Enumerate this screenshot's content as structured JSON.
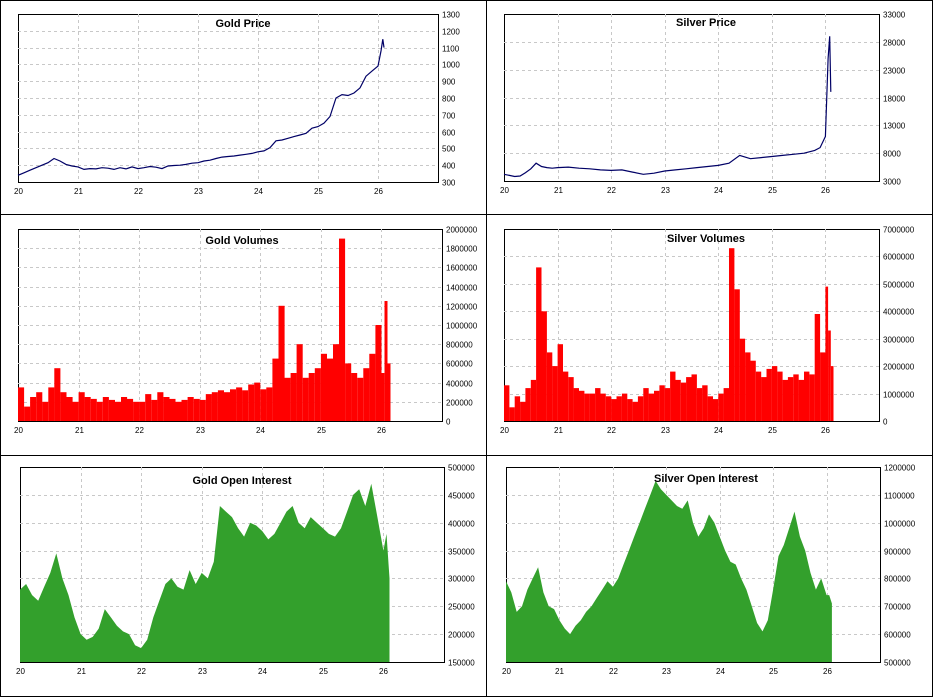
{
  "colors": {
    "price_line": "#000066",
    "volume_fill": "#ff0000",
    "oi_fill": "#33a02c"
  },
  "chart_data": [
    {
      "id": "gold-price",
      "type": "line",
      "title": "Gold Price",
      "x_ticks": [
        "20",
        "21",
        "22",
        "23",
        "24",
        "25",
        "26"
      ],
      "xlim": [
        20,
        27
      ],
      "y_ticks": [
        "300",
        "400",
        "500",
        "600",
        "700",
        "800",
        "900",
        "1000",
        "1100",
        "1200",
        "1300"
      ],
      "ylim": [
        300,
        1300
      ],
      "color": "#000066",
      "x": [
        20.0,
        20.1,
        20.2,
        20.3,
        20.4,
        20.5,
        20.6,
        20.7,
        20.8,
        20.9,
        21.0,
        21.1,
        21.2,
        21.3,
        21.4,
        21.5,
        21.6,
        21.7,
        21.8,
        21.9,
        22.0,
        22.1,
        22.2,
        22.3,
        22.4,
        22.5,
        22.6,
        22.7,
        22.8,
        22.9,
        23.0,
        23.1,
        23.2,
        23.3,
        23.4,
        23.5,
        23.6,
        23.7,
        23.8,
        23.9,
        24.0,
        24.1,
        24.2,
        24.3,
        24.4,
        24.5,
        24.6,
        24.7,
        24.8,
        24.9,
        25.0,
        25.1,
        25.2,
        25.3,
        25.4,
        25.5,
        25.6,
        25.7,
        25.8,
        25.9,
        26.0,
        26.05,
        26.08,
        26.1
      ],
      "y": [
        340,
        355,
        370,
        385,
        400,
        415,
        440,
        425,
        405,
        395,
        390,
        375,
        380,
        378,
        385,
        382,
        375,
        385,
        378,
        390,
        380,
        385,
        392,
        388,
        380,
        395,
        398,
        400,
        405,
        412,
        415,
        425,
        430,
        440,
        448,
        452,
        455,
        460,
        465,
        470,
        480,
        485,
        505,
        545,
        550,
        560,
        570,
        580,
        590,
        620,
        630,
        650,
        690,
        800,
        820,
        815,
        830,
        860,
        930,
        960,
        990,
        1080,
        1150,
        1100
      ]
    },
    {
      "id": "silver-price",
      "type": "line",
      "title": "Silver Price",
      "x_ticks": [
        "20",
        "21",
        "22",
        "23",
        "24",
        "25",
        "26"
      ],
      "xlim": [
        20,
        27
      ],
      "y_ticks": [
        "3000",
        "8000",
        "13000",
        "18000",
        "23000",
        "28000",
        "33000"
      ],
      "ylim": [
        3000,
        33000
      ],
      "color": "#000066",
      "x": [
        20.0,
        20.1,
        20.2,
        20.3,
        20.4,
        20.5,
        20.6,
        20.7,
        20.8,
        20.9,
        21.0,
        21.2,
        21.4,
        21.6,
        21.8,
        22.0,
        22.2,
        22.4,
        22.6,
        22.8,
        23.0,
        23.2,
        23.4,
        23.6,
        23.8,
        24.0,
        24.2,
        24.4,
        24.6,
        24.8,
        25.0,
        25.2,
        25.4,
        25.6,
        25.8,
        25.9,
        26.0,
        26.05,
        26.08,
        26.1
      ],
      "y": [
        4200,
        4000,
        3800,
        3900,
        4500,
        5200,
        6200,
        5600,
        5400,
        5300,
        5400,
        5500,
        5300,
        5200,
        5000,
        4900,
        5000,
        4600,
        4200,
        4400,
        4800,
        5000,
        5200,
        5400,
        5600,
        5800,
        6200,
        7600,
        7000,
        7200,
        7400,
        7600,
        7800,
        8000,
        8500,
        9000,
        11000,
        25000,
        29000,
        19000
      ]
    },
    {
      "id": "gold-volumes",
      "type": "bar",
      "title": "Gold Volumes",
      "x_ticks": [
        "20",
        "21",
        "22",
        "23",
        "24",
        "25",
        "26"
      ],
      "xlim": [
        20,
        27
      ],
      "y_ticks": [
        "0",
        "200000",
        "400000",
        "600000",
        "800000",
        "1000000",
        "1200000",
        "1400000",
        "1600000",
        "1800000",
        "2000000"
      ],
      "ylim": [
        0,
        2000000
      ],
      "color": "#ff0000",
      "x": [
        20.0,
        20.1,
        20.2,
        20.3,
        20.4,
        20.5,
        20.6,
        20.7,
        20.8,
        20.9,
        21.0,
        21.1,
        21.2,
        21.3,
        21.4,
        21.5,
        21.6,
        21.7,
        21.8,
        21.9,
        22.0,
        22.1,
        22.2,
        22.3,
        22.4,
        22.5,
        22.6,
        22.7,
        22.8,
        22.9,
        23.0,
        23.1,
        23.2,
        23.3,
        23.4,
        23.5,
        23.6,
        23.7,
        23.8,
        23.9,
        24.0,
        24.1,
        24.2,
        24.3,
        24.4,
        24.5,
        24.6,
        24.7,
        24.8,
        24.9,
        25.0,
        25.1,
        25.2,
        25.3,
        25.4,
        25.5,
        25.6,
        25.7,
        25.8,
        25.9,
        26.0,
        26.05,
        26.1
      ],
      "y": [
        350000,
        150000,
        250000,
        300000,
        200000,
        350000,
        550000,
        300000,
        250000,
        200000,
        300000,
        250000,
        230000,
        200000,
        250000,
        220000,
        200000,
        250000,
        230000,
        200000,
        200000,
        280000,
        220000,
        300000,
        250000,
        230000,
        200000,
        220000,
        250000,
        230000,
        220000,
        280000,
        300000,
        320000,
        300000,
        330000,
        350000,
        320000,
        380000,
        400000,
        330000,
        350000,
        650000,
        1200000,
        450000,
        500000,
        800000,
        450000,
        500000,
        550000,
        700000,
        650000,
        800000,
        1900000,
        600000,
        500000,
        450000,
        550000,
        700000,
        1000000,
        500000,
        1250000,
        600000
      ]
    },
    {
      "id": "silver-volumes",
      "type": "bar",
      "title": "Silver Volumes",
      "x_ticks": [
        "20",
        "21",
        "22",
        "23",
        "24",
        "25",
        "26"
      ],
      "xlim": [
        20,
        27
      ],
      "y_ticks": [
        "0",
        "1000000",
        "2000000",
        "3000000",
        "4000000",
        "5000000",
        "6000000",
        "7000000"
      ],
      "ylim": [
        0,
        7000000
      ],
      "color": "#ff0000",
      "x": [
        20.0,
        20.1,
        20.2,
        20.3,
        20.4,
        20.5,
        20.6,
        20.7,
        20.8,
        20.9,
        21.0,
        21.1,
        21.2,
        21.3,
        21.4,
        21.5,
        21.6,
        21.7,
        21.8,
        21.9,
        22.0,
        22.1,
        22.2,
        22.3,
        22.4,
        22.5,
        22.6,
        22.7,
        22.8,
        22.9,
        23.0,
        23.1,
        23.2,
        23.3,
        23.4,
        23.5,
        23.6,
        23.7,
        23.8,
        23.9,
        24.0,
        24.1,
        24.2,
        24.3,
        24.4,
        24.5,
        24.6,
        24.7,
        24.8,
        24.9,
        25.0,
        25.1,
        25.2,
        25.3,
        25.4,
        25.5,
        25.6,
        25.7,
        25.8,
        25.9,
        26.0,
        26.05,
        26.1
      ],
      "y": [
        1300000,
        500000,
        900000,
        700000,
        1200000,
        1500000,
        5600000,
        4000000,
        2500000,
        2000000,
        2800000,
        1800000,
        1600000,
        1200000,
        1100000,
        1000000,
        1000000,
        1200000,
        1000000,
        900000,
        800000,
        900000,
        1000000,
        800000,
        700000,
        900000,
        1200000,
        1000000,
        1100000,
        1300000,
        1200000,
        1800000,
        1500000,
        1400000,
        1600000,
        1700000,
        1200000,
        1300000,
        900000,
        800000,
        1000000,
        1200000,
        6300000,
        4800000,
        3000000,
        2500000,
        2200000,
        1800000,
        1600000,
        1900000,
        2000000,
        1800000,
        1500000,
        1600000,
        1700000,
        1500000,
        1800000,
        1700000,
        3900000,
        2500000,
        4900000,
        3300000,
        2000000
      ]
    },
    {
      "id": "gold-open-interest",
      "type": "area",
      "title": "Gold Open Interest",
      "x_ticks": [
        "20",
        "21",
        "22",
        "23",
        "24",
        "25",
        "26"
      ],
      "xlim": [
        20,
        27
      ],
      "y_ticks": [
        "150000",
        "200000",
        "250000",
        "300000",
        "350000",
        "400000",
        "450000",
        "500000"
      ],
      "ylim": [
        150000,
        500000
      ],
      "color": "#33a02c",
      "x": [
        20.0,
        20.1,
        20.2,
        20.3,
        20.4,
        20.5,
        20.6,
        20.7,
        20.8,
        20.9,
        21.0,
        21.1,
        21.2,
        21.3,
        21.4,
        21.5,
        21.6,
        21.7,
        21.8,
        21.9,
        22.0,
        22.1,
        22.2,
        22.3,
        22.4,
        22.5,
        22.6,
        22.7,
        22.8,
        22.9,
        23.0,
        23.1,
        23.2,
        23.3,
        23.4,
        23.5,
        23.6,
        23.7,
        23.8,
        23.9,
        24.0,
        24.1,
        24.2,
        24.3,
        24.4,
        24.5,
        24.6,
        24.7,
        24.8,
        24.9,
        25.0,
        25.1,
        25.2,
        25.3,
        25.4,
        25.5,
        25.6,
        25.7,
        25.8,
        25.9,
        26.0,
        26.05,
        26.1
      ],
      "y": [
        280000,
        290000,
        270000,
        260000,
        285000,
        310000,
        345000,
        300000,
        270000,
        230000,
        200000,
        190000,
        195000,
        210000,
        245000,
        230000,
        215000,
        205000,
        200000,
        180000,
        175000,
        190000,
        230000,
        260000,
        290000,
        300000,
        285000,
        280000,
        315000,
        290000,
        310000,
        300000,
        330000,
        430000,
        420000,
        410000,
        390000,
        375000,
        400000,
        395000,
        385000,
        370000,
        380000,
        400000,
        420000,
        430000,
        400000,
        390000,
        410000,
        400000,
        390000,
        380000,
        375000,
        390000,
        420000,
        450000,
        460000,
        430000,
        470000,
        410000,
        350000,
        380000,
        300000
      ]
    },
    {
      "id": "silver-open-interest",
      "type": "area",
      "title": "Silver Open Interest",
      "x_ticks": [
        "20",
        "21",
        "22",
        "23",
        "24",
        "25",
        "26"
      ],
      "xlim": [
        20,
        27
      ],
      "y_ticks": [
        "500000",
        "600000",
        "700000",
        "800000",
        "900000",
        "1000000",
        "1100000",
        "1200000"
      ],
      "ylim": [
        500000,
        1200000
      ],
      "color": "#33a02c",
      "x": [
        20.0,
        20.1,
        20.2,
        20.3,
        20.4,
        20.5,
        20.6,
        20.7,
        20.8,
        20.9,
        21.0,
        21.1,
        21.2,
        21.3,
        21.4,
        21.5,
        21.6,
        21.7,
        21.8,
        21.9,
        22.0,
        22.1,
        22.2,
        22.3,
        22.4,
        22.5,
        22.6,
        22.7,
        22.8,
        22.9,
        23.0,
        23.1,
        23.2,
        23.3,
        23.4,
        23.5,
        23.6,
        23.7,
        23.8,
        23.9,
        24.0,
        24.1,
        24.2,
        24.3,
        24.4,
        24.5,
        24.6,
        24.7,
        24.8,
        24.9,
        25.0,
        25.1,
        25.2,
        25.3,
        25.4,
        25.5,
        25.6,
        25.7,
        25.8,
        25.9,
        26.0,
        26.05,
        26.1
      ],
      "y": [
        790000,
        750000,
        680000,
        700000,
        760000,
        800000,
        840000,
        750000,
        700000,
        690000,
        650000,
        620000,
        600000,
        630000,
        650000,
        680000,
        700000,
        730000,
        760000,
        790000,
        770000,
        800000,
        850000,
        900000,
        950000,
        1000000,
        1050000,
        1100000,
        1150000,
        1120000,
        1100000,
        1080000,
        1060000,
        1050000,
        1080000,
        1000000,
        950000,
        980000,
        1030000,
        1000000,
        950000,
        900000,
        860000,
        850000,
        800000,
        760000,
        700000,
        640000,
        610000,
        650000,
        760000,
        880000,
        920000,
        980000,
        1040000,
        950000,
        900000,
        820000,
        760000,
        800000,
        740000,
        740000,
        710000
      ]
    }
  ]
}
